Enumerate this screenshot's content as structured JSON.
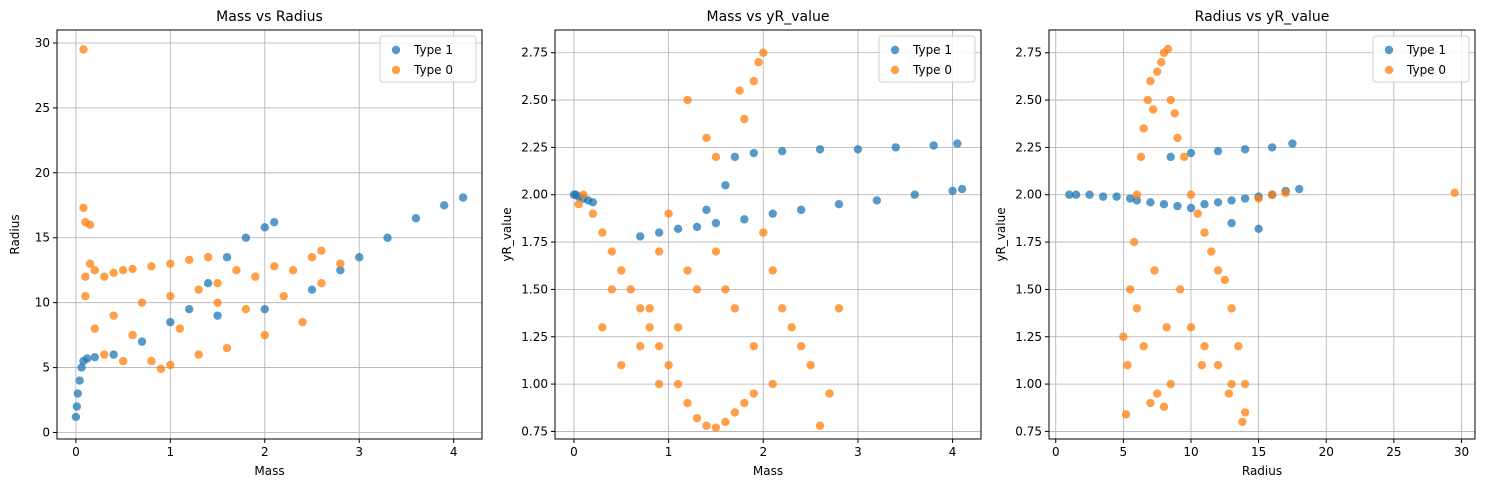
{
  "colors": {
    "type1": "#1f77b4",
    "type0": "#ff7f0e",
    "grid": "#b0b0b0"
  },
  "chart_data": [
    {
      "type": "scatter",
      "title": "Mass vs Radius",
      "xlabel": "Mass",
      "ylabel": "Radius",
      "xlim": [
        -0.2,
        4.3
      ],
      "ylim": [
        -0.5,
        31.0
      ],
      "xticks": [
        0,
        1,
        2,
        3,
        4
      ],
      "yticks": [
        0,
        5,
        10,
        15,
        20,
        25,
        30
      ],
      "ytick_decimals": 0,
      "grid": true,
      "legend_position": "top-right",
      "series": [
        {
          "name": "Type 1",
          "color": "#1f77b4",
          "x": [
            0.0,
            0.01,
            0.02,
            0.04,
            0.06,
            0.08,
            0.12,
            0.2,
            0.4,
            0.7,
            1.0,
            1.2,
            1.4,
            1.6,
            1.8,
            2.0,
            2.1,
            1.5,
            2.0,
            2.5,
            2.8,
            3.0,
            3.3,
            3.6,
            3.9,
            4.1
          ],
          "y": [
            1.2,
            2.0,
            3.0,
            4.0,
            5.0,
            5.5,
            5.7,
            5.8,
            6.0,
            7.0,
            8.5,
            9.5,
            11.5,
            13.5,
            15.0,
            15.8,
            16.2,
            9.0,
            9.5,
            11.0,
            12.5,
            13.5,
            15.0,
            16.5,
            17.5,
            18.1
          ]
        },
        {
          "name": "Type 0",
          "color": "#ff7f0e",
          "x": [
            0.08,
            0.08,
            0.1,
            0.15,
            0.15,
            0.1,
            0.2,
            0.3,
            0.4,
            0.5,
            0.6,
            0.8,
            1.0,
            1.2,
            1.4,
            1.5,
            1.7,
            1.9,
            2.1,
            2.3,
            2.5,
            2.6,
            2.8,
            0.3,
            0.5,
            0.8,
            1.0,
            1.3,
            1.6,
            2.0,
            2.4,
            0.2,
            0.4,
            0.7,
            1.0,
            1.3,
            1.5,
            1.8,
            2.2,
            2.6,
            0.1,
            0.6,
            1.1,
            0.9
          ],
          "y": [
            29.5,
            17.3,
            16.2,
            16.0,
            13.0,
            12.0,
            12.5,
            12.0,
            12.3,
            12.5,
            12.6,
            12.8,
            13.0,
            13.3,
            13.5,
            11.5,
            12.5,
            12.0,
            12.8,
            12.5,
            13.5,
            14.0,
            13.0,
            6.0,
            5.5,
            5.5,
            5.2,
            6.0,
            6.5,
            7.5,
            8.5,
            8.0,
            9.0,
            10.0,
            10.5,
            11.0,
            10.0,
            9.5,
            10.5,
            11.5,
            10.5,
            7.5,
            8.0,
            4.9
          ]
        }
      ]
    },
    {
      "type": "scatter",
      "title": "Mass vs yR_value",
      "xlabel": "Mass",
      "ylabel": "yR_value",
      "xlim": [
        -0.2,
        4.3
      ],
      "ylim": [
        0.71,
        2.87
      ],
      "xticks": [
        0,
        1,
        2,
        3,
        4
      ],
      "yticks": [
        0.75,
        1.0,
        1.25,
        1.5,
        1.75,
        2.0,
        2.25,
        2.5,
        2.75
      ],
      "ytick_decimals": 2,
      "grid": true,
      "legend_position": "top-right",
      "series": [
        {
          "name": "Type 1",
          "color": "#1f77b4",
          "x": [
            0.0,
            0.02,
            0.05,
            0.1,
            0.15,
            0.2,
            0.7,
            0.9,
            1.1,
            1.3,
            1.5,
            1.8,
            2.1,
            2.4,
            2.8,
            3.2,
            3.6,
            4.0,
            4.1,
            1.7,
            1.9,
            2.2,
            2.6,
            3.0,
            3.4,
            3.8,
            4.05,
            1.6,
            1.4
          ],
          "y": [
            2.0,
            2.0,
            1.99,
            1.98,
            1.97,
            1.96,
            1.78,
            1.8,
            1.82,
            1.83,
            1.85,
            1.87,
            1.9,
            1.92,
            1.95,
            1.97,
            2.0,
            2.02,
            2.03,
            2.2,
            2.22,
            2.23,
            2.24,
            2.24,
            2.25,
            2.26,
            2.27,
            2.05,
            1.92
          ]
        },
        {
          "name": "Type 0",
          "color": "#ff7f0e",
          "x": [
            0.05,
            0.1,
            0.2,
            0.3,
            0.4,
            0.5,
            0.6,
            0.7,
            0.8,
            0.9,
            1.0,
            1.1,
            1.2,
            1.3,
            1.4,
            1.5,
            1.6,
            1.7,
            1.8,
            1.9,
            1.95,
            2.0,
            2.1,
            2.2,
            2.3,
            2.4,
            2.5,
            2.6,
            2.7,
            2.8,
            0.3,
            0.5,
            0.7,
            0.9,
            1.1,
            1.3,
            1.5,
            1.7,
            1.9,
            2.1,
            0.4,
            0.8,
            1.2,
            1.6,
            2.0,
            1.4,
            1.5,
            1.8,
            1.2,
            1.0,
            0.9,
            1.75,
            1.9
          ],
          "y": [
            1.95,
            2.0,
            1.9,
            1.8,
            1.7,
            1.6,
            1.5,
            1.4,
            1.3,
            1.2,
            1.1,
            1.0,
            0.9,
            0.82,
            0.78,
            0.77,
            0.8,
            0.85,
            0.9,
            0.95,
            2.7,
            2.75,
            1.6,
            1.4,
            1.3,
            1.2,
            1.1,
            0.78,
            0.95,
            1.4,
            1.3,
            1.1,
            1.2,
            1.0,
            1.3,
            1.5,
            1.7,
            1.4,
            1.2,
            1.0,
            1.5,
            1.4,
            1.6,
            1.5,
            1.8,
            2.3,
            2.2,
            2.4,
            2.5,
            1.9,
            1.7,
            2.55,
            2.6
          ]
        }
      ]
    },
    {
      "type": "scatter",
      "title": "Radius vs yR_value",
      "xlabel": "Radius",
      "ylabel": "yR_value",
      "xlim": [
        -0.5,
        31.0
      ],
      "ylim": [
        0.71,
        2.87
      ],
      "xticks": [
        0,
        5,
        10,
        15,
        20,
        25,
        30
      ],
      "yticks": [
        0.75,
        1.0,
        1.25,
        1.5,
        1.75,
        2.0,
        2.25,
        2.5,
        2.75
      ],
      "ytick_decimals": 2,
      "grid": true,
      "legend_position": "top-right",
      "series": [
        {
          "name": "Type 1",
          "color": "#1f77b4",
          "x": [
            1.0,
            1.5,
            2.5,
            3.5,
            4.5,
            5.5,
            6.0,
            7.0,
            8.0,
            9.0,
            10.0,
            11.0,
            12.0,
            13.0,
            14.0,
            15.0,
            16.0,
            17.0,
            18.0,
            8.5,
            10.0,
            12.0,
            14.0,
            16.0,
            17.5,
            13.0,
            15.0
          ],
          "y": [
            2.0,
            2.0,
            2.0,
            1.99,
            1.99,
            1.98,
            1.97,
            1.96,
            1.95,
            1.94,
            1.93,
            1.95,
            1.96,
            1.97,
            1.98,
            1.99,
            2.0,
            2.02,
            2.03,
            2.2,
            2.22,
            2.23,
            2.24,
            2.25,
            2.27,
            1.85,
            1.82
          ]
        },
        {
          "name": "Type 0",
          "color": "#ff7f0e",
          "x": [
            5.0,
            5.3,
            5.5,
            5.8,
            6.0,
            6.3,
            6.5,
            6.8,
            7.0,
            7.2,
            7.5,
            7.8,
            8.0,
            8.3,
            8.5,
            8.8,
            9.0,
            9.5,
            10.0,
            10.5,
            11.0,
            11.5,
            12.0,
            12.5,
            13.0,
            13.5,
            14.0,
            7.0,
            7.5,
            8.0,
            8.5,
            6.5,
            6.0,
            10.0,
            11.0,
            12.0,
            13.0,
            14.0,
            15.0,
            16.0,
            17.0,
            29.5,
            7.3,
            8.2,
            9.2,
            10.8,
            12.8,
            13.8,
            5.2
          ],
          "y": [
            1.25,
            1.1,
            1.5,
            1.75,
            2.0,
            2.2,
            2.35,
            2.5,
            2.6,
            2.45,
            2.65,
            2.7,
            2.75,
            2.77,
            2.5,
            2.43,
            2.3,
            2.2,
            2.0,
            1.9,
            1.8,
            1.7,
            1.6,
            1.55,
            1.4,
            1.2,
            1.0,
            0.9,
            0.95,
            0.88,
            1.0,
            1.2,
            1.4,
            1.3,
            1.2,
            1.1,
            1.0,
            0.85,
            1.98,
            2.0,
            2.01,
            2.01,
            1.6,
            1.3,
            1.5,
            1.1,
            0.95,
            0.8,
            0.84
          ]
        }
      ]
    }
  ]
}
